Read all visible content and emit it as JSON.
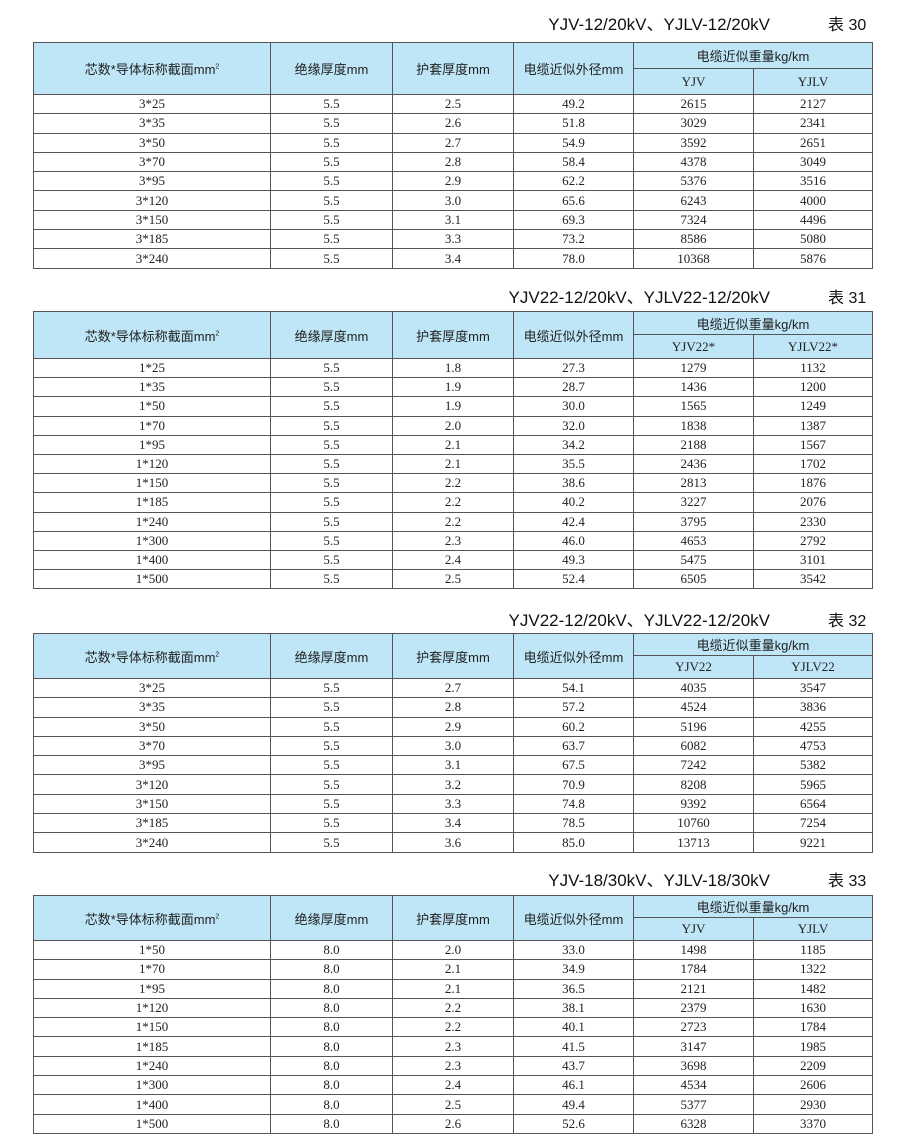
{
  "header_color": "#bfe6f7",
  "columns": {
    "spec": "芯数*导体标称截面mm",
    "spec_sup": "2",
    "insulation": "绝缘厚度mm",
    "sheath": "护套厚度mm",
    "diameter": "电缆近似外径mm",
    "weight": "电缆近似重量kg/km"
  },
  "tables": [
    {
      "title": "YJV-12/20kV、YJLV-12/20kV",
      "number": "表 30",
      "sub": [
        "YJV",
        "YJLV"
      ],
      "rows": [
        [
          "3*25",
          "5.5",
          "2.5",
          "49.2",
          "2615",
          "2127"
        ],
        [
          "3*35",
          "5.5",
          "2.6",
          "51.8",
          "3029",
          "2341"
        ],
        [
          "3*50",
          "5.5",
          "2.7",
          "54.9",
          "3592",
          "2651"
        ],
        [
          "3*70",
          "5.5",
          "2.8",
          "58.4",
          "4378",
          "3049"
        ],
        [
          "3*95",
          "5.5",
          "2.9",
          "62.2",
          "5376",
          "3516"
        ],
        [
          "3*120",
          "5.5",
          "3.0",
          "65.6",
          "6243",
          "4000"
        ],
        [
          "3*150",
          "5.5",
          "3.1",
          "69.3",
          "7324",
          "4496"
        ],
        [
          "3*185",
          "5.5",
          "3.3",
          "73.2",
          "8586",
          "5080"
        ],
        [
          "3*240",
          "5.5",
          "3.4",
          "78.0",
          "10368",
          "5876"
        ]
      ]
    },
    {
      "title": "YJV22-12/20kV、YJLV22-12/20kV",
      "number": "表 31",
      "sub": [
        "YJV22*",
        "YJLV22*"
      ],
      "rows": [
        [
          "1*25",
          "5.5",
          "1.8",
          "27.3",
          "1279",
          "1132"
        ],
        [
          "1*35",
          "5.5",
          "1.9",
          "28.7",
          "1436",
          "1200"
        ],
        [
          "1*50",
          "5.5",
          "1.9",
          "30.0",
          "1565",
          "1249"
        ],
        [
          "1*70",
          "5.5",
          "2.0",
          "32.0",
          "1838",
          "1387"
        ],
        [
          "1*95",
          "5.5",
          "2.1",
          "34.2",
          "2188",
          "1567"
        ],
        [
          "1*120",
          "5.5",
          "2.1",
          "35.5",
          "2436",
          "1702"
        ],
        [
          "1*150",
          "5.5",
          "2.2",
          "38.6",
          "2813",
          "1876"
        ],
        [
          "1*185",
          "5.5",
          "2.2",
          "40.2",
          "3227",
          "2076"
        ],
        [
          "1*240",
          "5.5",
          "2.2",
          "42.4",
          "3795",
          "2330"
        ],
        [
          "1*300",
          "5.5",
          "2.3",
          "46.0",
          "4653",
          "2792"
        ],
        [
          "1*400",
          "5.5",
          "2.4",
          "49.3",
          "5475",
          "3101"
        ],
        [
          "1*500",
          "5.5",
          "2.5",
          "52.4",
          "6505",
          "3542"
        ]
      ]
    },
    {
      "title": "YJV22-12/20kV、YJLV22-12/20kV",
      "number": "表 32",
      "sub": [
        "YJV22",
        "YJLV22"
      ],
      "rows": [
        [
          "3*25",
          "5.5",
          "2.7",
          "54.1",
          "4035",
          "3547"
        ],
        [
          "3*35",
          "5.5",
          "2.8",
          "57.2",
          "4524",
          "3836"
        ],
        [
          "3*50",
          "5.5",
          "2.9",
          "60.2",
          "5196",
          "4255"
        ],
        [
          "3*70",
          "5.5",
          "3.0",
          "63.7",
          "6082",
          "4753"
        ],
        [
          "3*95",
          "5.5",
          "3.1",
          "67.5",
          "7242",
          "5382"
        ],
        [
          "3*120",
          "5.5",
          "3.2",
          "70.9",
          "8208",
          "5965"
        ],
        [
          "3*150",
          "5.5",
          "3.3",
          "74.8",
          "9392",
          "6564"
        ],
        [
          "3*185",
          "5.5",
          "3.4",
          "78.5",
          "10760",
          "7254"
        ],
        [
          "3*240",
          "5.5",
          "3.6",
          "85.0",
          "13713",
          "9221"
        ]
      ]
    },
    {
      "title": "YJV-18/30kV、YJLV-18/30kV",
      "number": "表 33",
      "sub": [
        "YJV",
        "YJLV"
      ],
      "rows": [
        [
          "1*50",
          "8.0",
          "2.0",
          "33.0",
          "1498",
          "1185"
        ],
        [
          "1*70",
          "8.0",
          "2.1",
          "34.9",
          "1784",
          "1322"
        ],
        [
          "1*95",
          "8.0",
          "2.1",
          "36.5",
          "2121",
          "1482"
        ],
        [
          "1*120",
          "8.0",
          "2.2",
          "38.1",
          "2379",
          "1630"
        ],
        [
          "1*150",
          "8.0",
          "2.2",
          "40.1",
          "2723",
          "1784"
        ],
        [
          "1*185",
          "8.0",
          "2.3",
          "41.5",
          "3147",
          "1985"
        ],
        [
          "1*240",
          "8.0",
          "2.3",
          "43.7",
          "3698",
          "2209"
        ],
        [
          "1*300",
          "8.0",
          "2.4",
          "46.1",
          "4534",
          "2606"
        ],
        [
          "1*400",
          "8.0",
          "2.5",
          "49.4",
          "5377",
          "2930"
        ],
        [
          "1*500",
          "8.0",
          "2.6",
          "52.6",
          "6328",
          "3370"
        ]
      ]
    }
  ]
}
